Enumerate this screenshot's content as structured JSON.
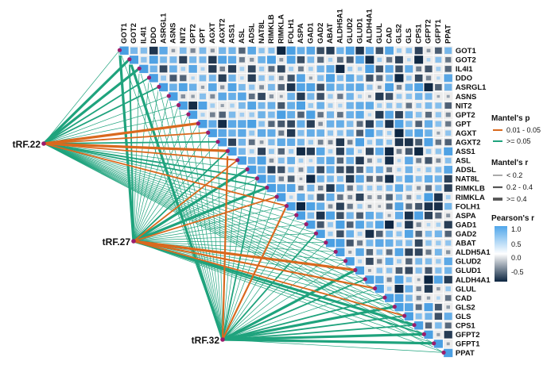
{
  "chart_data": {
    "type": "heatmap",
    "genes": [
      "GOT1",
      "GOT2",
      "IL4I1",
      "DDO",
      "ASRGL1",
      "ASNS",
      "NIT2",
      "GPT2",
      "GPT",
      "AGXT",
      "AGXT2",
      "ASS1",
      "ASL",
      "ADSL",
      "NAT8L",
      "RIMKLB",
      "RIMKLA",
      "FOLH1",
      "ASPA",
      "GAD1",
      "GAD2",
      "ABAT",
      "ALDH5A1",
      "GLUD2",
      "GLUD1",
      "ALDH4A1",
      "GLUL",
      "CAD",
      "GLS2",
      "GLS",
      "CPS1",
      "GFPT2",
      "GFPT1",
      "PPAT"
    ],
    "trfs": [
      "tRF.22",
      "tRF.27",
      "tRF.32"
    ],
    "mantel_links": {
      "tRF.22": {
        "p_sig": [
          "GPT",
          "AGXT",
          "ASS1",
          "ASL",
          "FOLH1"
        ],
        "r_strong": [
          "GOT2",
          "IL4I1",
          "ASS1",
          "GPT"
        ],
        "r_mid": [
          "DDO",
          "ASRGL1",
          "AGXT",
          "AGXT2",
          "ASL",
          "NAT8L",
          "RIMKLB",
          "FOLH1"
        ]
      },
      "tRF.27": {
        "p_sig": [
          "ASL",
          "RIMKLA",
          "GLUD1",
          "GLUL",
          "GLS"
        ],
        "r_strong": [
          "GOT1",
          "ADSL",
          "RIMKLB",
          "GLUD1",
          "CPS1"
        ],
        "r_mid": [
          "GOT2",
          "ASS1",
          "ASL",
          "RIMKLA",
          "GLS",
          "GFPT2"
        ]
      },
      "tRF.32": {
        "p_sig": [
          "ASS1",
          "FOLH1"
        ],
        "r_strong": [
          "GLUD1",
          "GLS2",
          "GFPT2",
          "GFPT1",
          "GOT2"
        ],
        "r_mid": [
          "NAT8L",
          "GAD2",
          "ALDH4A1",
          "CAD",
          "GLS",
          "CPS1"
        ]
      }
    },
    "legend": {
      "mantel_p": {
        "title": "Mantel's p",
        "items": [
          "0.01 - 0.05",
          ">= 0.05"
        ]
      },
      "mantel_r": {
        "title": "Mantel's r",
        "items": [
          "< 0.2",
          "0.2 - 0.4",
          ">= 0.4"
        ]
      },
      "pearson": {
        "title": "Pearson's r",
        "ticks": [
          "1.0",
          "0.5",
          "0.0",
          "-0.5"
        ],
        "range": [
          -1,
          1
        ]
      }
    },
    "colors": {
      "sig": "#D9691E",
      "nonsig": "#1FA37D",
      "pos": "#4A9FE3",
      "neg": "#0B2440",
      "node": "#9B1C6B"
    }
  }
}
